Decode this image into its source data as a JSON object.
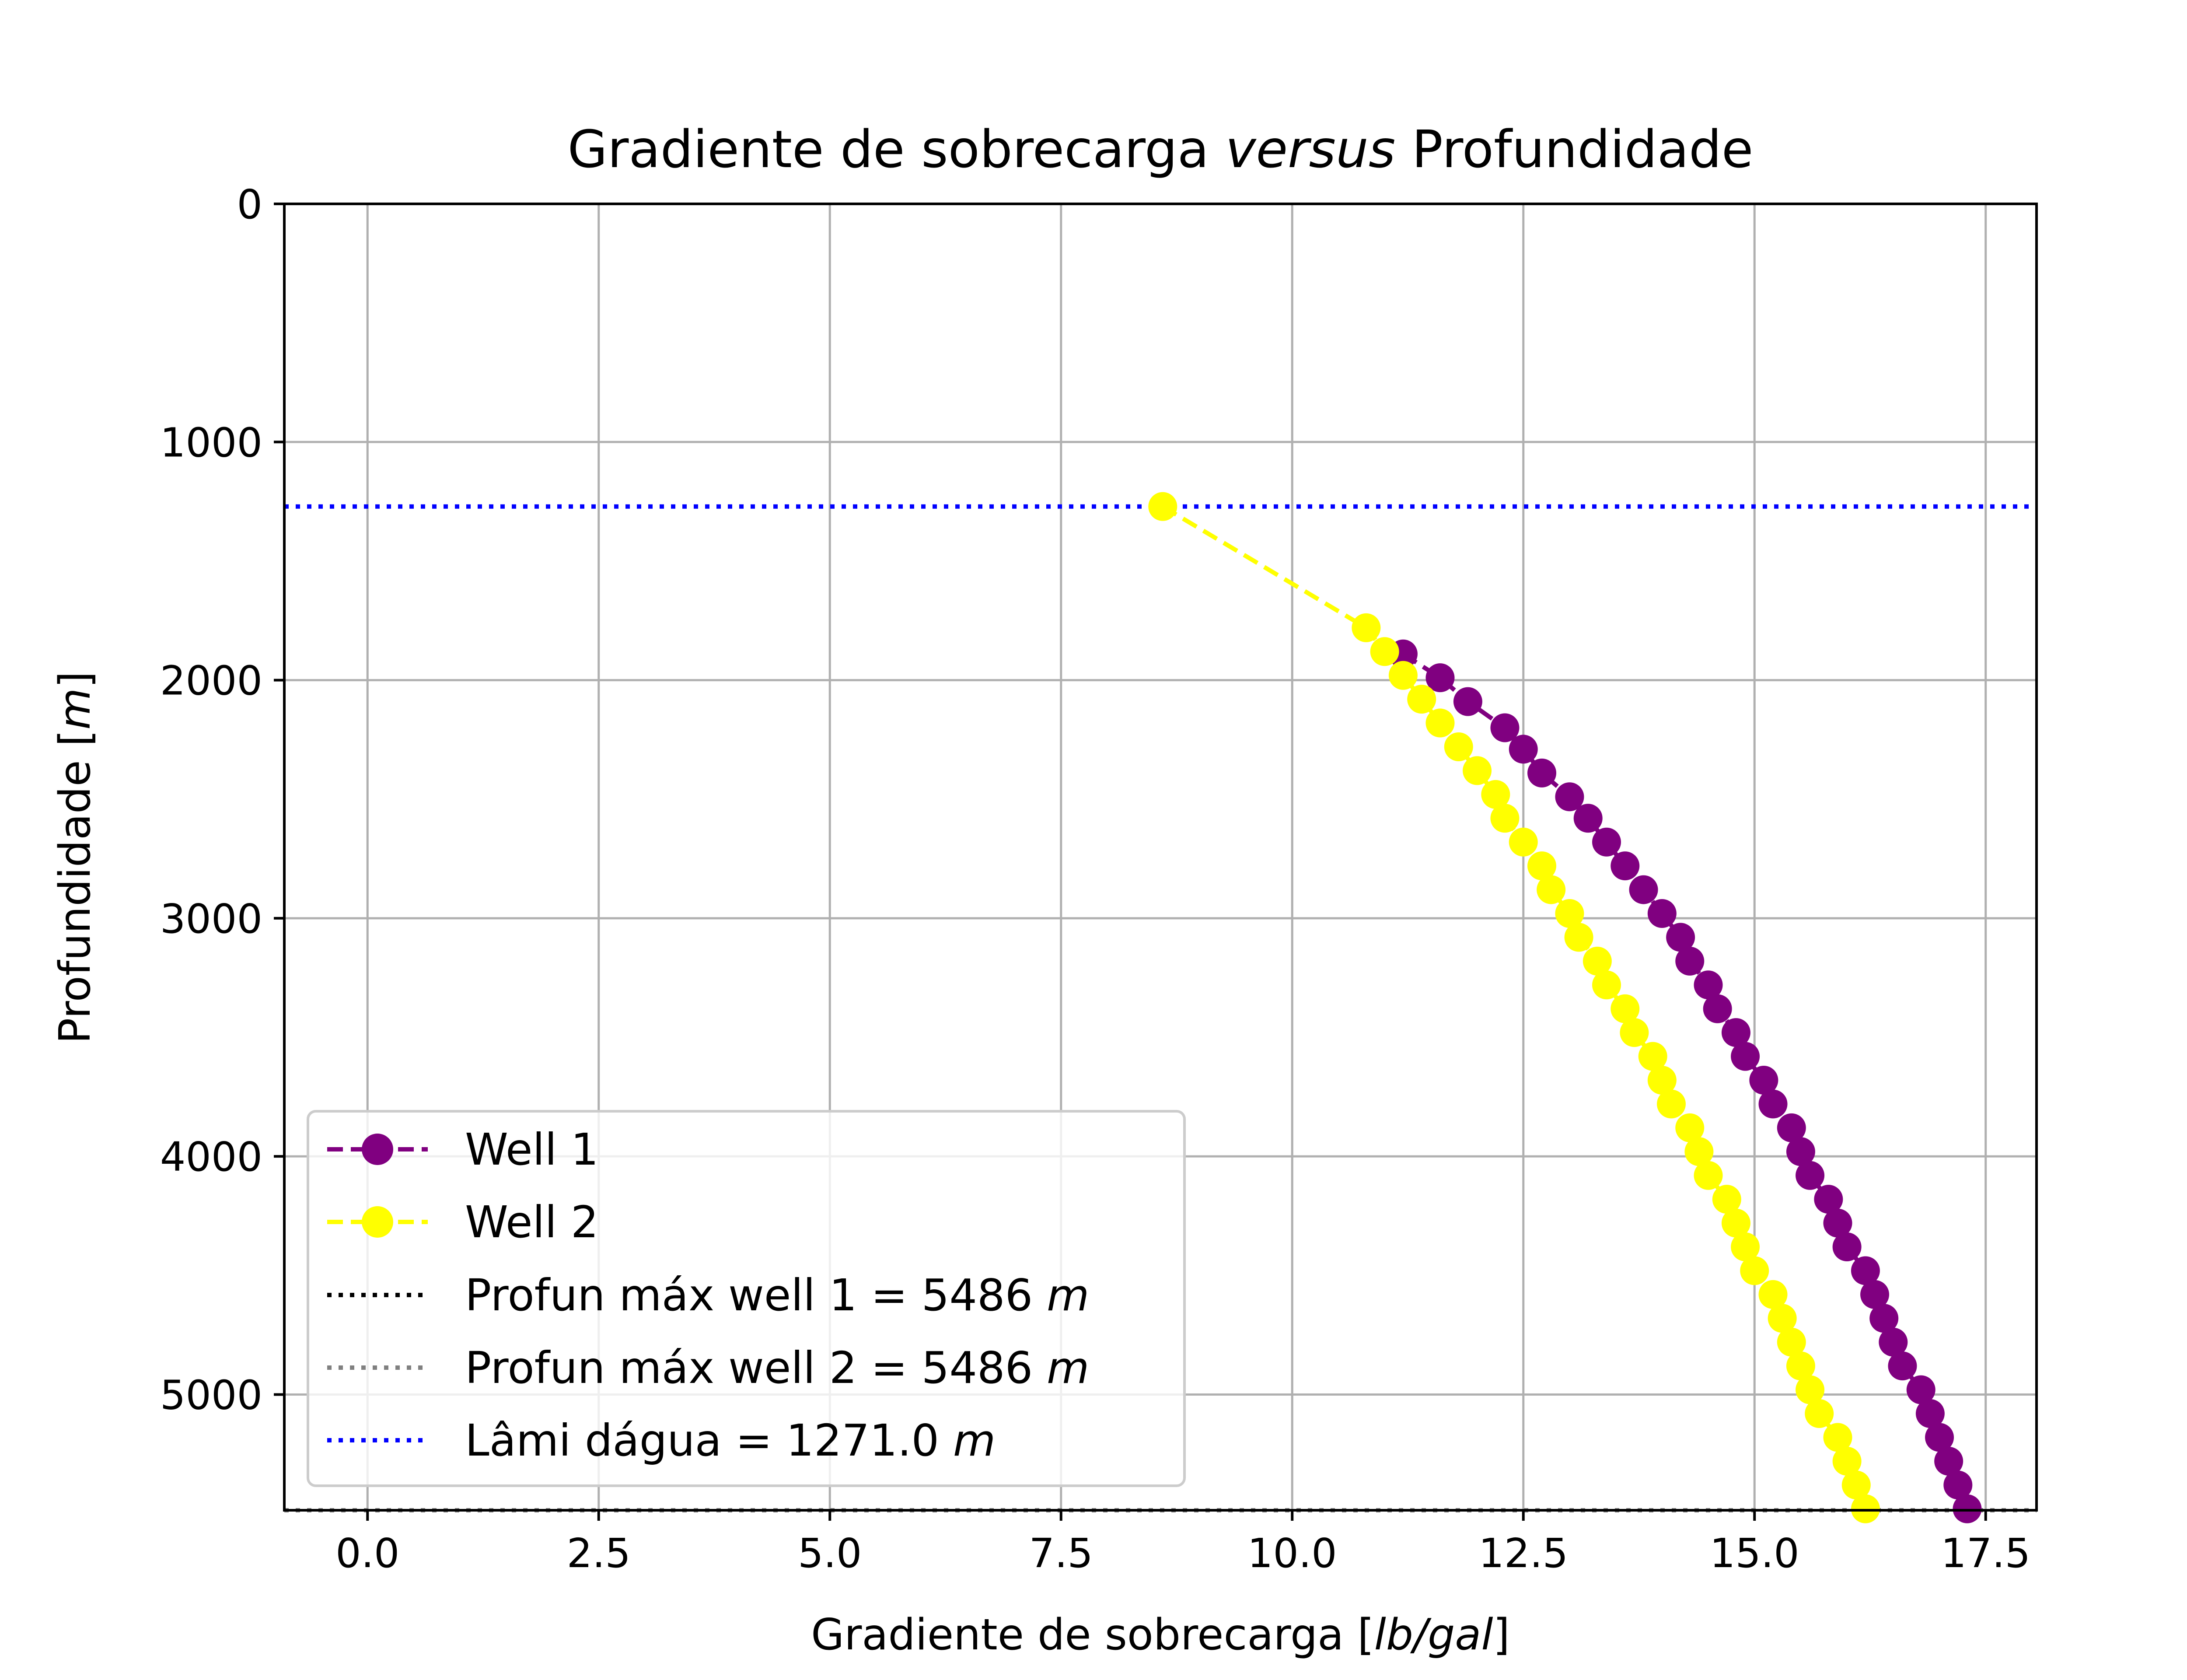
{
  "chart_data": {
    "type": "line",
    "title_main": "Gradiente de sobrecarga ",
    "title_italic": "versus",
    "title_tail": " Profundidade",
    "xlabel_pre": "Gradiente de sobrecarga [",
    "xlabel_unit": "lb/gal",
    "xlabel_post": "]",
    "ylabel_pre": "Profundidade [",
    "ylabel_unit": "m",
    "ylabel_post": "]",
    "xlim": [
      -0.9,
      18.05
    ],
    "ylim": [
      5486,
      0
    ],
    "y_inverted": true,
    "grid": true,
    "legend_position": "lower left",
    "x_ticks": [
      {
        "value": 0.0,
        "label": "0.0"
      },
      {
        "value": 2.5,
        "label": "2.5"
      },
      {
        "value": 5.0,
        "label": "5.0"
      },
      {
        "value": 7.5,
        "label": "7.5"
      },
      {
        "value": 10.0,
        "label": "10.0"
      },
      {
        "value": 12.5,
        "label": "12.5"
      },
      {
        "value": 15.0,
        "label": "15.0"
      },
      {
        "value": 17.5,
        "label": "17.5"
      }
    ],
    "y_ticks": [
      {
        "value": 0,
        "label": "0"
      },
      {
        "value": 1000,
        "label": "1000"
      },
      {
        "value": 2000,
        "label": "2000"
      },
      {
        "value": 3000,
        "label": "3000"
      },
      {
        "value": 4000,
        "label": "4000"
      },
      {
        "value": 5000,
        "label": "5000"
      }
    ],
    "series": [
      {
        "name": "Well 1",
        "color": "#800080",
        "line_style": "dashed",
        "marker": "circle",
        "depth": [
          1890,
          1990,
          2090,
          2200,
          2290,
          2390,
          2490,
          2580,
          2680,
          2780,
          2880,
          2980,
          3080,
          3180,
          3280,
          3380,
          3480,
          3580,
          3680,
          3780,
          3880,
          3980,
          4080,
          4180,
          4280,
          4380,
          4480,
          4580,
          4680,
          4780,
          4880,
          4980,
          5080,
          5180,
          5280,
          5380,
          5480
        ],
        "gradient": [
          11.2,
          11.6,
          11.9,
          12.3,
          12.5,
          12.7,
          13.0,
          13.2,
          13.4,
          13.6,
          13.8,
          14.0,
          14.2,
          14.3,
          14.5,
          14.6,
          14.8,
          14.9,
          15.1,
          15.2,
          15.4,
          15.5,
          15.6,
          15.8,
          15.9,
          16.0,
          16.2,
          16.3,
          16.4,
          16.5,
          16.6,
          16.8,
          16.9,
          17.0,
          17.1,
          17.2,
          17.3
        ]
      },
      {
        "name": "Well 2",
        "color": "#ffff00",
        "line_style": "dashed",
        "marker": "circle",
        "depth": [
          1271,
          1780,
          1880,
          1980,
          2080,
          2180,
          2280,
          2380,
          2480,
          2580,
          2680,
          2780,
          2880,
          2980,
          3080,
          3180,
          3280,
          3380,
          3480,
          3580,
          3680,
          3780,
          3880,
          3980,
          4080,
          4180,
          4280,
          4380,
          4480,
          4580,
          4680,
          4780,
          4880,
          4980,
          5080,
          5180,
          5280,
          5380,
          5480
        ],
        "gradient": [
          8.6,
          10.8,
          11.0,
          11.2,
          11.4,
          11.6,
          11.8,
          12.0,
          12.2,
          12.3,
          12.5,
          12.7,
          12.8,
          13.0,
          13.1,
          13.3,
          13.4,
          13.6,
          13.7,
          13.9,
          14.0,
          14.1,
          14.3,
          14.4,
          14.5,
          14.7,
          14.8,
          14.9,
          15.0,
          15.2,
          15.3,
          15.4,
          15.5,
          15.6,
          15.7,
          15.9,
          16.0,
          16.1,
          16.2
        ]
      }
    ],
    "reference_lines": [
      {
        "name_pre": "Profun máx well 1 = 5486 ",
        "unit": "m",
        "depth": 5486,
        "color": "#000000",
        "line_style": "dotted"
      },
      {
        "name_pre": "Profun máx well 2 = 5486 ",
        "unit": "m",
        "depth": 5486,
        "color": "#808080",
        "line_style": "dotted"
      },
      {
        "name_pre": "Lâmi dágua = 1271.0 ",
        "unit": "m",
        "depth": 1271,
        "color": "#0000ff",
        "line_style": "dotted"
      }
    ]
  }
}
